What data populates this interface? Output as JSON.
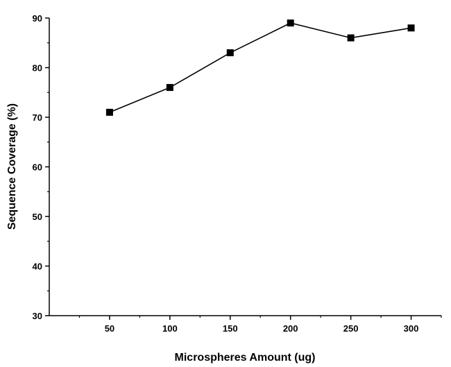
{
  "chart_data": {
    "type": "line",
    "title": "",
    "xlabel": "Microspheres Amount (ug)",
    "ylabel": "Sequence Coverage (%)",
    "x": [
      50,
      100,
      150,
      200,
      250,
      300
    ],
    "series": [
      {
        "values": [
          71,
          76,
          83,
          89,
          86,
          88
        ],
        "marker": "square",
        "color": "#000000"
      }
    ],
    "xlim": [
      0,
      325
    ],
    "ylim": [
      30,
      90
    ],
    "xticks": [
      50,
      100,
      150,
      200,
      250,
      300
    ],
    "yticks": [
      30,
      40,
      50,
      60,
      70,
      80,
      90
    ],
    "grid": false,
    "legend": "none"
  }
}
